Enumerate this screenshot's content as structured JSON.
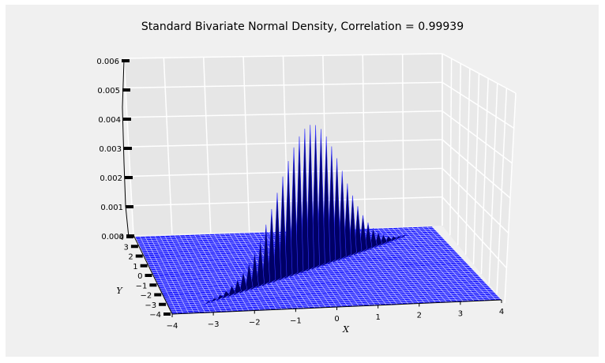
{
  "chart_data": {
    "type": "surface",
    "title": "Standard Bivariate Normal Density, Correlation = 0.99939",
    "xlabel": "X",
    "ylabel": "Y",
    "zlabel": "",
    "correlation": 0.99939,
    "x_ticks": [
      "−4",
      "−3",
      "−2",
      "−1",
      "0",
      "1",
      "2",
      "3",
      "4"
    ],
    "y_ticks": [
      "−4",
      "−3",
      "−2",
      "−1",
      "0",
      "1",
      "2",
      "3",
      "4"
    ],
    "z_ticks": [
      "0.000",
      "0.001",
      "0.002",
      "0.003",
      "0.004",
      "0.005",
      "0.006"
    ],
    "xlim": [
      -4,
      4
    ],
    "ylim": [
      -4,
      4
    ],
    "zlim": [
      0,
      0.006
    ],
    "surface_color": "#0000ff",
    "edge_color": "#000066",
    "grid": true,
    "background": "#f0f0f0"
  }
}
